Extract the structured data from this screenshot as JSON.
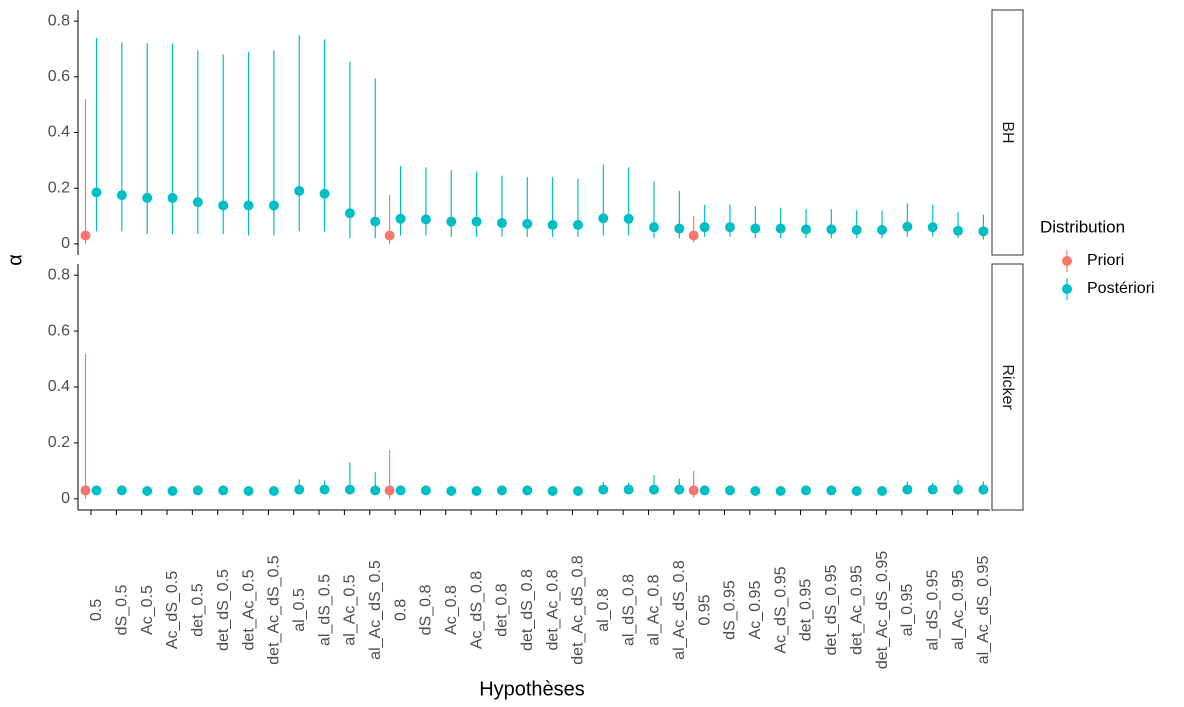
{
  "chart_data": {
    "type": "pointrange",
    "x_label": "Hypothèses",
    "y_label": "α",
    "legend_title": "Distribution",
    "legend_position": "right",
    "categories": [
      "0.5",
      "dS_0.5",
      "Ac_0.5",
      "Ac_dS_0.5",
      "det_0.5",
      "det_dS_0.5",
      "det_Ac_0.5",
      "det_Ac_dS_0.5",
      "al_0.5",
      "al_dS_0.5",
      "al_Ac_0.5",
      "al_Ac_dS_0.5",
      "0.8",
      "dS_0.8",
      "Ac_0.8",
      "Ac_dS_0.8",
      "det_0.8",
      "det_dS_0.8",
      "det_Ac_0.8",
      "det_Ac_dS_0.8",
      "al_0.8",
      "al_dS_0.8",
      "al_Ac_0.8",
      "al_Ac_dS_0.8",
      "0.95",
      "dS_0.95",
      "Ac_0.95",
      "Ac_dS_0.95",
      "det_0.95",
      "det_dS_0.95",
      "det_Ac_0.95",
      "det_Ac_dS_0.95",
      "al_0.95",
      "al_dS_0.95",
      "al_Ac_0.95",
      "al_Ac_dS_0.95"
    ],
    "ylim": [
      -0.04,
      0.84
    ],
    "yticks": [
      0,
      0.2,
      0.4,
      0.6,
      0.8
    ],
    "facets": [
      {
        "label": "BH",
        "series": [
          {
            "name": "Priori",
            "color": "#F8766D",
            "values": [
              0.03,
              null,
              null,
              null,
              null,
              null,
              null,
              null,
              null,
              null,
              null,
              null,
              0.03,
              null,
              null,
              null,
              null,
              null,
              null,
              null,
              null,
              null,
              null,
              null,
              0.03,
              null,
              null,
              null,
              null,
              null,
              null,
              null,
              null,
              null,
              null,
              null
            ],
            "low": [
              0,
              null,
              null,
              null,
              null,
              null,
              null,
              null,
              null,
              null,
              null,
              null,
              0,
              null,
              null,
              null,
              null,
              null,
              null,
              null,
              null,
              null,
              null,
              null,
              0.005,
              null,
              null,
              null,
              null,
              null,
              null,
              null,
              null,
              null,
              null,
              null
            ],
            "high": [
              0.52,
              null,
              null,
              null,
              null,
              null,
              null,
              null,
              null,
              null,
              null,
              null,
              0.175,
              null,
              null,
              null,
              null,
              null,
              null,
              null,
              null,
              null,
              null,
              null,
              0.1,
              null,
              null,
              null,
              null,
              null,
              null,
              null,
              null,
              null,
              null,
              null
            ]
          },
          {
            "name": "Postériori",
            "color": "#00BFC4",
            "values": [
              0.185,
              0.175,
              0.165,
              0.165,
              0.15,
              0.138,
              0.138,
              0.138,
              0.19,
              0.18,
              0.11,
              0.08,
              0.09,
              0.088,
              0.08,
              0.08,
              0.075,
              0.072,
              0.068,
              0.068,
              0.092,
              0.09,
              0.06,
              0.055,
              0.06,
              0.06,
              0.055,
              0.055,
              0.052,
              0.052,
              0.05,
              0.05,
              0.062,
              0.06,
              0.047,
              0.045
            ],
            "low": [
              0.045,
              0.045,
              0.035,
              0.035,
              0.035,
              0.035,
              0.03,
              0.03,
              0.045,
              0.045,
              0.02,
              0.02,
              0.03,
              0.03,
              0.025,
              0.025,
              0.025,
              0.025,
              0.025,
              0.025,
              0.03,
              0.03,
              0.02,
              0.02,
              0.025,
              0.025,
              0.02,
              0.02,
              0.02,
              0.02,
              0.02,
              0.02,
              0.025,
              0.025,
              0.02,
              0.015
            ],
            "high": [
              0.74,
              0.725,
              0.72,
              0.72,
              0.695,
              0.68,
              0.69,
              0.695,
              0.75,
              0.735,
              0.655,
              0.595,
              0.28,
              0.275,
              0.265,
              0.26,
              0.245,
              0.24,
              0.24,
              0.235,
              0.285,
              0.275,
              0.225,
              0.19,
              0.14,
              0.14,
              0.135,
              0.13,
              0.125,
              0.125,
              0.12,
              0.12,
              0.145,
              0.14,
              0.115,
              0.105
            ]
          }
        ]
      },
      {
        "label": "Ricker",
        "series": [
          {
            "name": "Priori",
            "color": "#F8766D",
            "values": [
              0.03,
              null,
              null,
              null,
              null,
              null,
              null,
              null,
              null,
              null,
              null,
              null,
              0.03,
              null,
              null,
              null,
              null,
              null,
              null,
              null,
              null,
              null,
              null,
              null,
              0.03,
              null,
              null,
              null,
              null,
              null,
              null,
              null,
              null,
              null,
              null,
              null
            ],
            "low": [
              0,
              null,
              null,
              null,
              null,
              null,
              null,
              null,
              null,
              null,
              null,
              null,
              0,
              null,
              null,
              null,
              null,
              null,
              null,
              null,
              null,
              null,
              null,
              null,
              0.005,
              null,
              null,
              null,
              null,
              null,
              null,
              null,
              null,
              null,
              null,
              null
            ],
            "high": [
              0.52,
              null,
              null,
              null,
              null,
              null,
              null,
              null,
              null,
              null,
              null,
              null,
              0.175,
              null,
              null,
              null,
              null,
              null,
              null,
              null,
              null,
              null,
              null,
              null,
              0.1,
              null,
              null,
              null,
              null,
              null,
              null,
              null,
              null,
              null,
              null,
              null
            ]
          },
          {
            "name": "Postériori",
            "color": "#00BFC4",
            "values": [
              0.03,
              0.03,
              0.028,
              0.028,
              0.03,
              0.03,
              0.028,
              0.028,
              0.033,
              0.033,
              0.033,
              0.03,
              0.03,
              0.03,
              0.028,
              0.028,
              0.03,
              0.03,
              0.028,
              0.028,
              0.033,
              0.033,
              0.033,
              0.033,
              0.03,
              0.03,
              0.028,
              0.028,
              0.03,
              0.03,
              0.028,
              0.028,
              0.033,
              0.033,
              0.033,
              0.033
            ],
            "low": [
              0.02,
              0.02,
              0.02,
              0.02,
              0.02,
              0.02,
              0.02,
              0.02,
              0.015,
              0.015,
              0.015,
              0.015,
              0.02,
              0.02,
              0.02,
              0.02,
              0.02,
              0.02,
              0.02,
              0.02,
              0.015,
              0.015,
              0.015,
              0.015,
              0.02,
              0.02,
              0.02,
              0.02,
              0.02,
              0.02,
              0.02,
              0.02,
              0.015,
              0.015,
              0.015,
              0.015
            ],
            "high": [
              0.042,
              0.042,
              0.04,
              0.04,
              0.042,
              0.042,
              0.04,
              0.04,
              0.07,
              0.065,
              0.13,
              0.095,
              0.042,
              0.042,
              0.04,
              0.04,
              0.042,
              0.042,
              0.04,
              0.04,
              0.06,
              0.058,
              0.085,
              0.072,
              0.042,
              0.042,
              0.04,
              0.04,
              0.042,
              0.042,
              0.04,
              0.04,
              0.062,
              0.058,
              0.068,
              0.062
            ]
          }
        ]
      }
    ]
  }
}
